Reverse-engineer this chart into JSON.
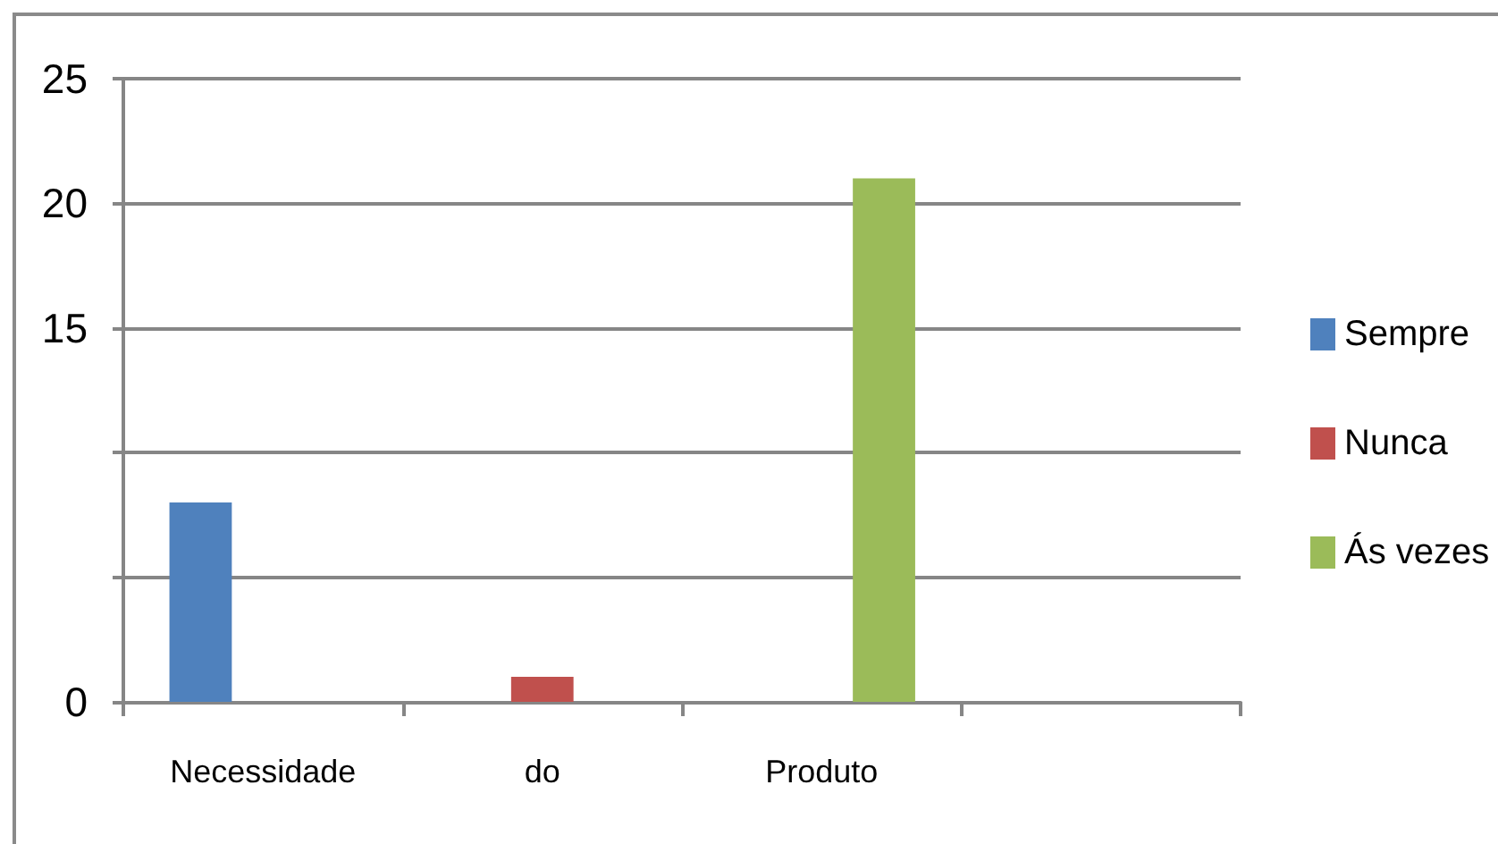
{
  "chart_data": {
    "type": "bar",
    "categories": [
      "Necessidade",
      "do",
      "Produto",
      null
    ],
    "series": [
      {
        "name": "Sempre",
        "color": "#4f81bd",
        "values": [
          8,
          null,
          null,
          null
        ]
      },
      {
        "name": "Nunca",
        "color": "#c0504d",
        "values": [
          null,
          1,
          null,
          null
        ]
      },
      {
        "name": "Ás vezes",
        "color": "#9bbb59",
        "values": [
          null,
          null,
          21,
          null
        ]
      }
    ],
    "ylim": [
      0,
      25
    ],
    "yticks": [
      0,
      {
        "value": 5,
        "label": null
      },
      {
        "value": 10,
        "label": null
      },
      15,
      20,
      25
    ],
    "grid": "y",
    "legend": "right"
  }
}
